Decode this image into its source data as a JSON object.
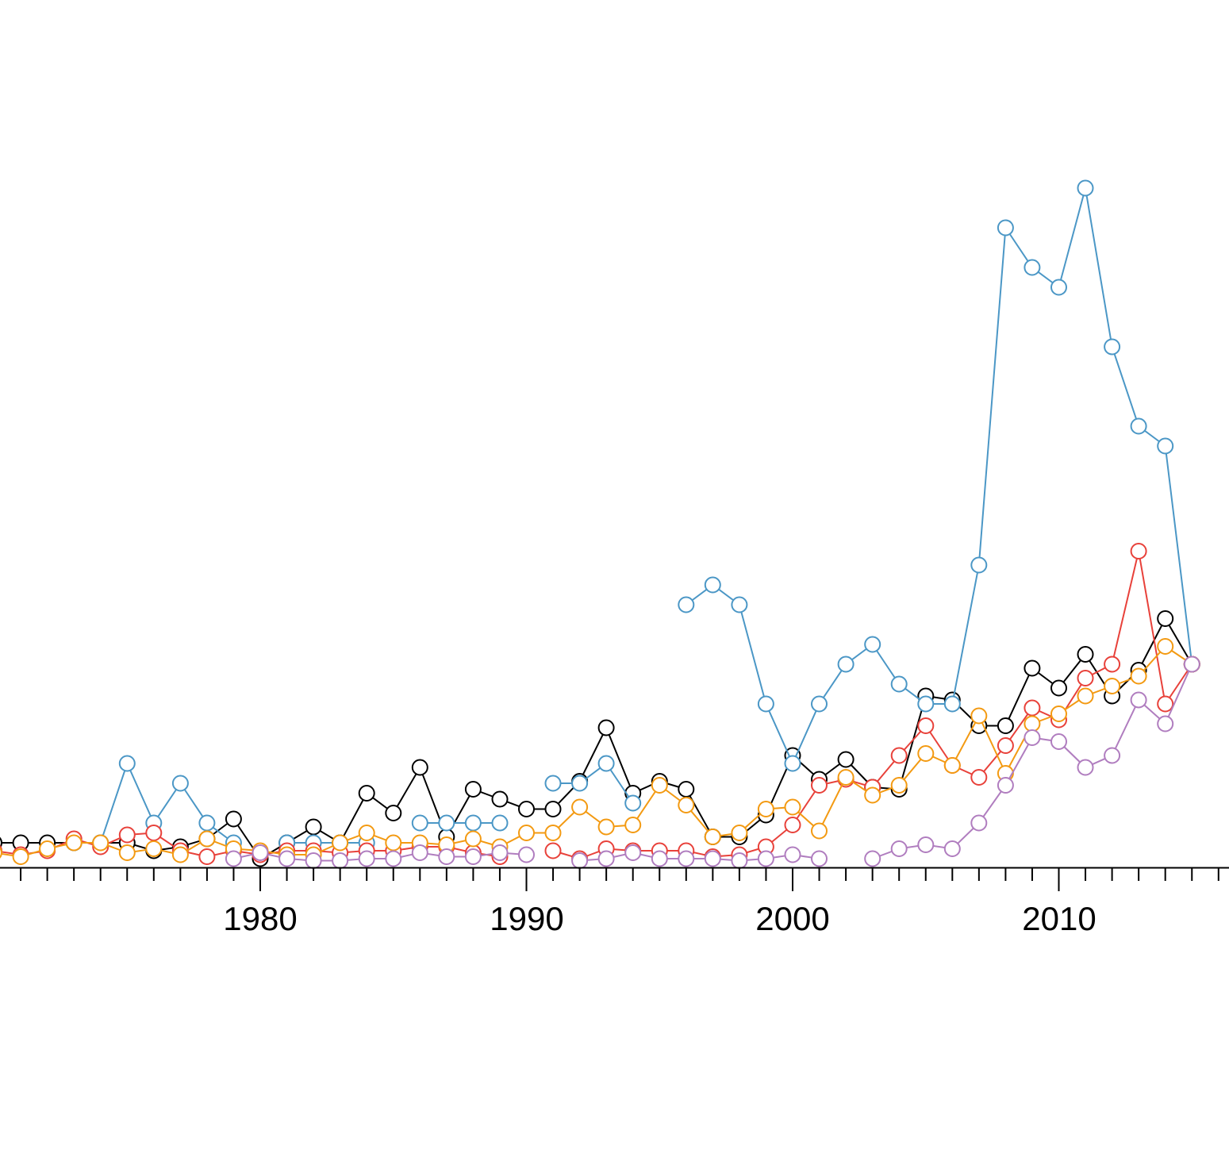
{
  "chart_data": {
    "type": "line",
    "title": "",
    "xlabel": "",
    "ylabel": "",
    "grid": false,
    "legend": "none",
    "xlim": [
      1970,
      2016.3
    ],
    "ylim": [
      0,
      40
    ],
    "x_ticks": [
      "1980",
      "1990",
      "2000",
      "2010"
    ],
    "series": [
      {
        "color": "#000000",
        "points": [
          [
            1970,
            1
          ],
          [
            1971,
            1
          ],
          [
            1972,
            1
          ],
          [
            1973,
            1
          ],
          [
            1974,
            1
          ],
          [
            1975,
            1
          ],
          [
            1976,
            0.6
          ],
          [
            1977,
            0.8
          ],
          [
            1978,
            1.2
          ],
          [
            1979,
            2.2
          ],
          [
            1980,
            0.2
          ],
          [
            1981,
            1
          ],
          [
            1982,
            1.8
          ],
          [
            1983,
            1
          ],
          [
            1984,
            3.5
          ],
          [
            1985,
            2.5
          ],
          [
            1986,
            4.8
          ],
          [
            1987,
            1.3
          ],
          [
            1988,
            3.7
          ],
          [
            1989,
            3.2
          ],
          [
            1990,
            2.7
          ],
          [
            1991,
            2.7
          ],
          [
            1992,
            4.1
          ],
          [
            1993,
            6.8
          ],
          [
            1994,
            3.5
          ],
          [
            1995,
            4.1
          ],
          [
            1996,
            3.7
          ],
          [
            1997,
            1.3
          ],
          [
            1998,
            1.3
          ],
          [
            1999,
            2.4
          ],
          [
            2000,
            5.4
          ],
          [
            2001,
            4.2
          ],
          [
            2002,
            5.2
          ],
          [
            2003,
            3.8
          ],
          [
            2004,
            3.7
          ],
          [
            2005,
            8.4
          ],
          [
            2006,
            8.2
          ],
          [
            2007,
            6.9
          ],
          [
            2008,
            6.9
          ],
          [
            2009,
            9.8
          ],
          [
            2010,
            8.8
          ],
          [
            2011,
            10.5
          ],
          [
            2012,
            8.4
          ],
          [
            2013,
            9.7
          ],
          [
            2014,
            12.3
          ],
          [
            2015,
            10
          ]
        ]
      },
      {
        "color": "#4b97c6",
        "points": [
          [
            1973,
            1
          ],
          [
            1974,
            1
          ],
          [
            1975,
            5
          ],
          [
            1976,
            2
          ],
          [
            1977,
            4
          ],
          [
            1978,
            2
          ],
          [
            1979,
            1
          ],
          [
            1981,
            1
          ],
          [
            1982,
            1
          ],
          [
            1983,
            1
          ],
          [
            1984,
            1
          ],
          [
            1986,
            2
          ],
          [
            1987,
            2
          ],
          [
            1988,
            2
          ],
          [
            1989,
            2
          ],
          [
            1991,
            4
          ],
          [
            1992,
            4
          ],
          [
            1993,
            5
          ],
          [
            1994,
            3
          ],
          [
            1996,
            13
          ],
          [
            1997,
            14
          ],
          [
            1998,
            13
          ],
          [
            1999,
            8
          ],
          [
            2000,
            5
          ],
          [
            2001,
            8
          ],
          [
            2002,
            10
          ],
          [
            2003,
            11
          ],
          [
            2004,
            9
          ],
          [
            2005,
            8
          ],
          [
            2006,
            8
          ],
          [
            2007,
            15
          ],
          [
            2008,
            32
          ],
          [
            2009,
            30
          ],
          [
            2010,
            29
          ],
          [
            2011,
            34
          ],
          [
            2012,
            26
          ],
          [
            2013,
            22
          ],
          [
            2014,
            21
          ],
          [
            2015,
            10
          ]
        ]
      },
      {
        "color": "#e8413a",
        "points": [
          [
            1970,
            0.6
          ],
          [
            1971,
            0.4
          ],
          [
            1972,
            0.6
          ],
          [
            1973,
            1.2
          ],
          [
            1974,
            0.8
          ],
          [
            1975,
            1.4
          ],
          [
            1976,
            1.5
          ],
          [
            1977,
            0.6
          ],
          [
            1978,
            0.3
          ],
          [
            1979,
            0.6
          ],
          [
            1980,
            0.4
          ],
          [
            1981,
            0.6
          ],
          [
            1982,
            0.6
          ],
          [
            1983,
            0.5
          ],
          [
            1984,
            0.6
          ],
          [
            1985,
            0.6
          ],
          [
            1986,
            0.8
          ],
          [
            1987,
            0.8
          ],
          [
            1988,
            0.5
          ],
          [
            1989,
            0.3
          ],
          [
            1991,
            0.6
          ],
          [
            1992,
            0.2
          ],
          [
            1993,
            0.7
          ],
          [
            1994,
            0.6
          ],
          [
            1995,
            0.6
          ],
          [
            1996,
            0.6
          ],
          [
            1997,
            0.3
          ],
          [
            1998,
            0.4
          ],
          [
            1999,
            0.8
          ],
          [
            2000,
            1.9
          ],
          [
            2001,
            3.9
          ],
          [
            2002,
            4.2
          ],
          [
            2003,
            3.8
          ],
          [
            2004,
            5.4
          ],
          [
            2005,
            6.9
          ],
          [
            2006,
            4.9
          ],
          [
            2007,
            4.3
          ],
          [
            2008,
            5.9
          ],
          [
            2009,
            7.8
          ],
          [
            2010,
            7.2
          ],
          [
            2011,
            9.3
          ],
          [
            2012,
            10
          ],
          [
            2013,
            15.7
          ],
          [
            2014,
            8
          ],
          [
            2015,
            10
          ]
        ]
      },
      {
        "color": "#f39a12",
        "points": [
          [
            1970,
            0.5
          ],
          [
            1971,
            0.3
          ],
          [
            1972,
            0.7
          ],
          [
            1973,
            1
          ],
          [
            1974,
            1
          ],
          [
            1975,
            0.5
          ],
          [
            1976,
            0.7
          ],
          [
            1977,
            0.4
          ],
          [
            1978,
            1.2
          ],
          [
            1979,
            0.7
          ],
          [
            1980,
            0.6
          ],
          [
            1981,
            0.4
          ],
          [
            1982,
            0.4
          ],
          [
            1983,
            1
          ],
          [
            1984,
            1.5
          ],
          [
            1985,
            1
          ],
          [
            1986,
            1
          ],
          [
            1987,
            0.9
          ],
          [
            1988,
            1.2
          ],
          [
            1989,
            0.8
          ],
          [
            1990,
            1.5
          ],
          [
            1991,
            1.5
          ],
          [
            1992,
            2.8
          ],
          [
            1993,
            1.8
          ],
          [
            1994,
            1.9
          ],
          [
            1995,
            3.9
          ],
          [
            1996,
            2.9
          ],
          [
            1997,
            1.3
          ],
          [
            1998,
            1.5
          ],
          [
            1999,
            2.7
          ],
          [
            2000,
            2.8
          ],
          [
            2001,
            1.6
          ],
          [
            2002,
            4.3
          ],
          [
            2003,
            3.4
          ],
          [
            2004,
            3.9
          ],
          [
            2005,
            5.5
          ],
          [
            2006,
            4.9
          ],
          [
            2007,
            7.4
          ],
          [
            2008,
            4.5
          ],
          [
            2009,
            7
          ],
          [
            2010,
            7.5
          ],
          [
            2011,
            8.4
          ],
          [
            2012,
            8.9
          ],
          [
            2013,
            9.4
          ],
          [
            2014,
            10.9
          ],
          [
            2015,
            10
          ]
        ]
      },
      {
        "color": "#b07dbf",
        "points": [
          [
            1979,
            0.2
          ],
          [
            1980,
            0.5
          ],
          [
            1981,
            0.2
          ],
          [
            1982,
            0.1
          ],
          [
            1983,
            0.1
          ],
          [
            1984,
            0.2
          ],
          [
            1985,
            0.2
          ],
          [
            1986,
            0.5
          ],
          [
            1987,
            0.3
          ],
          [
            1988,
            0.3
          ],
          [
            1989,
            0.5
          ],
          [
            1990,
            0.4
          ],
          [
            1992,
            0.1
          ],
          [
            1993,
            0.2
          ],
          [
            1994,
            0.5
          ],
          [
            1995,
            0.2
          ],
          [
            1996,
            0.2
          ],
          [
            1997,
            0.2
          ],
          [
            1998,
            0.1
          ],
          [
            1999,
            0.2
          ],
          [
            2000,
            0.4
          ],
          [
            2001,
            0.2
          ],
          [
            2003,
            0.2
          ],
          [
            2004,
            0.7
          ],
          [
            2005,
            0.9
          ],
          [
            2006,
            0.7
          ],
          [
            2007,
            2
          ],
          [
            2008,
            3.9
          ],
          [
            2009,
            6.3
          ],
          [
            2010,
            6.1
          ],
          [
            2011,
            4.8
          ],
          [
            2012,
            5.4
          ],
          [
            2013,
            8.2
          ],
          [
            2014,
            7
          ],
          [
            2015,
            10
          ]
        ]
      }
    ]
  }
}
